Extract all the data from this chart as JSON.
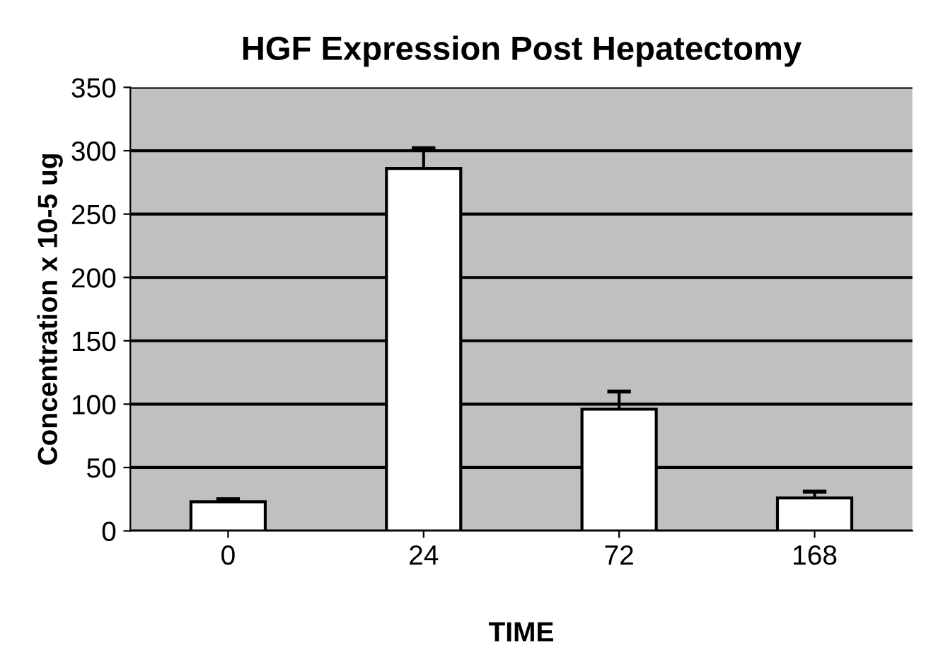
{
  "chart_data": {
    "type": "bar",
    "title": "HGF Expression Post Hepatectomy",
    "xlabel": "TIME",
    "ylabel": "Concentration x 10-5 ug",
    "categories": [
      "0",
      "24",
      "72",
      "168"
    ],
    "values": [
      23,
      286,
      96,
      26
    ],
    "errors": [
      2,
      16,
      14,
      5
    ],
    "color": "#ffffff",
    "ylim": [
      0,
      350
    ],
    "yticks": [
      0,
      50,
      100,
      150,
      200,
      250,
      300,
      350
    ],
    "grid": "y"
  }
}
